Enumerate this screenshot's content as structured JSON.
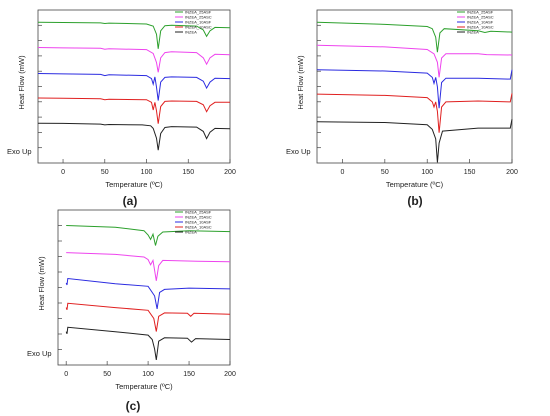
{
  "chart_data": [
    {
      "type": "line",
      "panel_label": "(a)",
      "xlabel": "Temperature (ºC)",
      "ylabel": "Heat Flow (mW)",
      "annotation": "Exo Up",
      "xlim": [
        -30,
        200
      ],
      "xticks": [
        0,
        50,
        100,
        150,
        200
      ],
      "legend_position": "top-right",
      "legend": [
        "INZEA_25ASF",
        "INZEA_25ASC",
        "INZEA_10ASF",
        "INZEA_10ASC",
        "INZEA"
      ],
      "series": [
        {
          "name": "INZEA_25ASF",
          "color": "#2ca02c",
          "baseline": 0.92,
          "points": [
            [
              -30,
              0
            ],
            [
              0,
              -0.05
            ],
            [
              45,
              -0.15
            ],
            [
              50,
              -0.3
            ],
            [
              55,
              -0.2
            ],
            [
              100,
              -0.4
            ],
            [
              108,
              -0.9
            ],
            [
              112,
              -2.8
            ],
            [
              114,
              -6.2
            ],
            [
              117,
              -2.0
            ],
            [
              122,
              -0.8
            ],
            [
              130,
              -0.7
            ],
            [
              160,
              -0.9
            ],
            [
              168,
              -1.8
            ],
            [
              172,
              -3.3
            ],
            [
              176,
              -2.0
            ],
            [
              182,
              -1.2
            ],
            [
              200,
              -1.3
            ]
          ]
        },
        {
          "name": "INZEA_25ASC",
          "color": "#ee44ee",
          "baseline": 0.755,
          "points": [
            [
              -30,
              0
            ],
            [
              0,
              -0.1
            ],
            [
              45,
              -0.2
            ],
            [
              50,
              -0.4
            ],
            [
              55,
              -0.3
            ],
            [
              100,
              -0.5
            ],
            [
              108,
              -1.4
            ],
            [
              112,
              -3.5
            ],
            [
              114,
              -5.8
            ],
            [
              117,
              -2.4
            ],
            [
              122,
              -1.2
            ],
            [
              130,
              -1.0
            ],
            [
              160,
              -1.2
            ],
            [
              168,
              -2.4
            ],
            [
              172,
              -3.9
            ],
            [
              176,
              -2.4
            ],
            [
              182,
              -1.6
            ],
            [
              200,
              -1.7
            ]
          ]
        },
        {
          "name": "INZEA_10ASF",
          "color": "#2b2be0",
          "baseline": 0.585,
          "points": [
            [
              -30,
              0
            ],
            [
              0,
              -0.1
            ],
            [
              45,
              -0.2
            ],
            [
              50,
              -0.5
            ],
            [
              55,
              -0.3
            ],
            [
              100,
              -0.5
            ],
            [
              106,
              -1.2
            ],
            [
              108,
              -2.5
            ],
            [
              110,
              -0.8
            ],
            [
              112,
              -3.2
            ],
            [
              114,
              -6.3
            ],
            [
              117,
              -2.0
            ],
            [
              122,
              -0.9
            ],
            [
              130,
              -0.8
            ],
            [
              160,
              -0.9
            ],
            [
              168,
              -1.8
            ],
            [
              172,
              -3.4
            ],
            [
              176,
              -2.0
            ],
            [
              182,
              -1.1
            ],
            [
              200,
              -1.2
            ]
          ]
        },
        {
          "name": "INZEA_10ASC",
          "color": "#e02020",
          "baseline": 0.425,
          "points": [
            [
              -30,
              0
            ],
            [
              0,
              -0.05
            ],
            [
              45,
              -0.2
            ],
            [
              50,
              -0.4
            ],
            [
              55,
              -0.3
            ],
            [
              100,
              -0.4
            ],
            [
              106,
              -1.0
            ],
            [
              108,
              -2.8
            ],
            [
              110,
              -1.0
            ],
            [
              112,
              -3.0
            ],
            [
              114,
              -6.0
            ],
            [
              117,
              -2.0
            ],
            [
              122,
              -0.8
            ],
            [
              130,
              -0.7
            ],
            [
              160,
              -0.8
            ],
            [
              168,
              -1.6
            ],
            [
              172,
              -3.2
            ],
            [
              176,
              -1.8
            ],
            [
              182,
              -1.0
            ],
            [
              200,
              -1.0
            ]
          ]
        },
        {
          "name": "INZEA",
          "color": "#222222",
          "baseline": 0.26,
          "points": [
            [
              -30,
              0
            ],
            [
              0,
              -0.05
            ],
            [
              45,
              -0.2
            ],
            [
              50,
              -0.4
            ],
            [
              55,
              -0.3
            ],
            [
              95,
              -0.4
            ],
            [
              105,
              -0.6
            ],
            [
              108,
              -1.2
            ],
            [
              112,
              -3.5
            ],
            [
              114,
              -6.3
            ],
            [
              117,
              -2.4
            ],
            [
              122,
              -1.0
            ],
            [
              130,
              -0.8
            ],
            [
              160,
              -0.9
            ],
            [
              168,
              -1.9
            ],
            [
              172,
              -3.6
            ],
            [
              176,
              -2.1
            ],
            [
              182,
              -1.2
            ],
            [
              200,
              -1.3
            ]
          ]
        }
      ]
    },
    {
      "type": "line",
      "panel_label": "(b)",
      "xlabel": "Temperature (ºC)",
      "ylabel": "Heat Flow (mW)",
      "annotation": "Exo Up",
      "xlim": [
        -30,
        200
      ],
      "xticks": [
        0,
        50,
        100,
        150,
        200
      ],
      "legend_position": "top-right",
      "legend": [
        "INZEA_25ASF",
        "INZEA_25ASC",
        "INZEA_10ASF",
        "INZEA_10ASC",
        "INZEA"
      ],
      "series": [
        {
          "name": "INZEA_25ASF",
          "color": "#2ca02c",
          "baseline": 0.92,
          "points": [
            [
              -30,
              0
            ],
            [
              50,
              -0.5
            ],
            [
              100,
              -1.0
            ],
            [
              106,
              -1.5
            ],
            [
              110,
              -3.5
            ],
            [
              112,
              -7.0
            ],
            [
              115,
              -2.5
            ],
            [
              120,
              -1.5
            ],
            [
              160,
              -2.0
            ],
            [
              168,
              -2.4
            ],
            [
              175,
              -2.1
            ],
            [
              200,
              -2.3
            ]
          ]
        },
        {
          "name": "INZEA_25ASC",
          "color": "#ee44ee",
          "baseline": 0.77,
          "points": [
            [
              -30,
              0
            ],
            [
              50,
              -0.4
            ],
            [
              100,
              -1.0
            ],
            [
              108,
              -2.0
            ],
            [
              112,
              -4.0
            ],
            [
              114,
              -7.5
            ],
            [
              117,
              -3.0
            ],
            [
              122,
              -2.0
            ],
            [
              160,
              -2.0
            ],
            [
              170,
              -2.2
            ],
            [
              200,
              -2.3
            ]
          ]
        },
        {
          "name": "INZEA_10ASF",
          "color": "#2b2be0",
          "baseline": 0.61,
          "points": [
            [
              -30,
              0
            ],
            [
              50,
              -0.3
            ],
            [
              100,
              -0.8
            ],
            [
              106,
              -1.8
            ],
            [
              108,
              -3.2
            ],
            [
              110,
              -1.8
            ],
            [
              112,
              -4.0
            ],
            [
              114,
              -9.0
            ],
            [
              117,
              -3.0
            ],
            [
              122,
              -2.0
            ],
            [
              160,
              -2.0
            ],
            [
              198,
              -2.2
            ],
            [
              200,
              0.0
            ]
          ]
        },
        {
          "name": "INZEA_10ASC",
          "color": "#e02020",
          "baseline": 0.45,
          "points": [
            [
              -30,
              0
            ],
            [
              50,
              -0.3
            ],
            [
              100,
              -0.8
            ],
            [
              106,
              -1.8
            ],
            [
              108,
              -3.0
            ],
            [
              110,
              -1.8
            ],
            [
              112,
              -4.0
            ],
            [
              114,
              -9.0
            ],
            [
              117,
              -3.0
            ],
            [
              122,
              -1.8
            ],
            [
              160,
              -1.6
            ],
            [
              198,
              -1.8
            ],
            [
              200,
              0.2
            ]
          ]
        },
        {
          "name": "INZEA",
          "color": "#222222",
          "baseline": 0.27,
          "points": [
            [
              -30,
              0
            ],
            [
              50,
              -0.2
            ],
            [
              100,
              -0.7
            ],
            [
              106,
              -1.8
            ],
            [
              110,
              -4.0
            ],
            [
              112,
              -9.5
            ],
            [
              114,
              -5.0
            ],
            [
              118,
              -2.2
            ],
            [
              160,
              -1.5
            ],
            [
              198,
              -1.5
            ],
            [
              200,
              0.6
            ]
          ]
        }
      ]
    },
    {
      "type": "line",
      "panel_label": "(c)",
      "xlabel": "Temperature (ºC)",
      "ylabel": "Heat Flow (mW)",
      "annotation": "Exo Up",
      "xlim": [
        -10,
        200
      ],
      "xticks": [
        0,
        50,
        100,
        150,
        200
      ],
      "legend_position": "top-right",
      "legend": [
        "INZEA_25ASF",
        "INZEA_25ASC",
        "INZEA_10ASF",
        "INZEA_10ASC",
        "INZEA"
      ],
      "series": [
        {
          "name": "INZEA_25ASF",
          "color": "#2ca02c",
          "baseline": 0.9,
          "points": [
            [
              0,
              0
            ],
            [
              60,
              -0.4
            ],
            [
              95,
              -1.2
            ],
            [
              100,
              -2.2
            ],
            [
              103,
              -3.2
            ],
            [
              106,
              -2.0
            ],
            [
              109,
              -4.6
            ],
            [
              112,
              -2.5
            ],
            [
              118,
              -1.5
            ],
            [
              150,
              -1.2
            ],
            [
              200,
              -1.4
            ]
          ]
        },
        {
          "name": "INZEA_25ASC",
          "color": "#ee44ee",
          "baseline": 0.725,
          "points": [
            [
              0,
              0
            ],
            [
              60,
              -0.4
            ],
            [
              95,
              -1.0
            ],
            [
              100,
              -1.6
            ],
            [
              103,
              -2.8
            ],
            [
              106,
              -1.8
            ],
            [
              110,
              -6.5
            ],
            [
              113,
              -3.0
            ],
            [
              118,
              -1.8
            ],
            [
              160,
              -2.0
            ],
            [
              200,
              -2.1
            ]
          ]
        },
        {
          "name": "INZEA_10ASF",
          "color": "#2b2be0",
          "baseline": 0.53,
          "points": [
            [
              0,
              0
            ],
            [
              1,
              -0.5
            ],
            [
              2,
              1.0
            ],
            [
              60,
              -0.2
            ],
            [
              100,
              -0.8
            ],
            [
              108,
              -3.0
            ],
            [
              111,
              -6.0
            ],
            [
              114,
              -2.2
            ],
            [
              120,
              -1.5
            ],
            [
              150,
              -1.2
            ],
            [
              200,
              -1.4
            ]
          ]
        },
        {
          "name": "INZEA_10ASC",
          "color": "#e02020",
          "baseline": 0.37,
          "points": [
            [
              0,
              0
            ],
            [
              1,
              -0.5
            ],
            [
              2,
              1.0
            ],
            [
              60,
              0.0
            ],
            [
              100,
              -0.6
            ],
            [
              107,
              -2.5
            ],
            [
              110,
              -5.5
            ],
            [
              113,
              -2.0
            ],
            [
              120,
              -1.2
            ],
            [
              148,
              -1.3
            ],
            [
              152,
              -2.0
            ],
            [
              156,
              -1.3
            ],
            [
              200,
              -1.5
            ]
          ]
        },
        {
          "name": "INZEA",
          "color": "#222222",
          "baseline": 0.215,
          "points": [
            [
              0,
              0
            ],
            [
              1,
              -0.5
            ],
            [
              2,
              1.0
            ],
            [
              60,
              0.0
            ],
            [
              100,
              -0.8
            ],
            [
              105,
              -1.8
            ],
            [
              108,
              -4.0
            ],
            [
              110,
              -6.5
            ],
            [
              113,
              -2.2
            ],
            [
              120,
              -1.4
            ],
            [
              148,
              -1.5
            ],
            [
              153,
              -2.4
            ],
            [
              158,
              -1.6
            ],
            [
              200,
              -1.8
            ]
          ]
        }
      ]
    }
  ]
}
